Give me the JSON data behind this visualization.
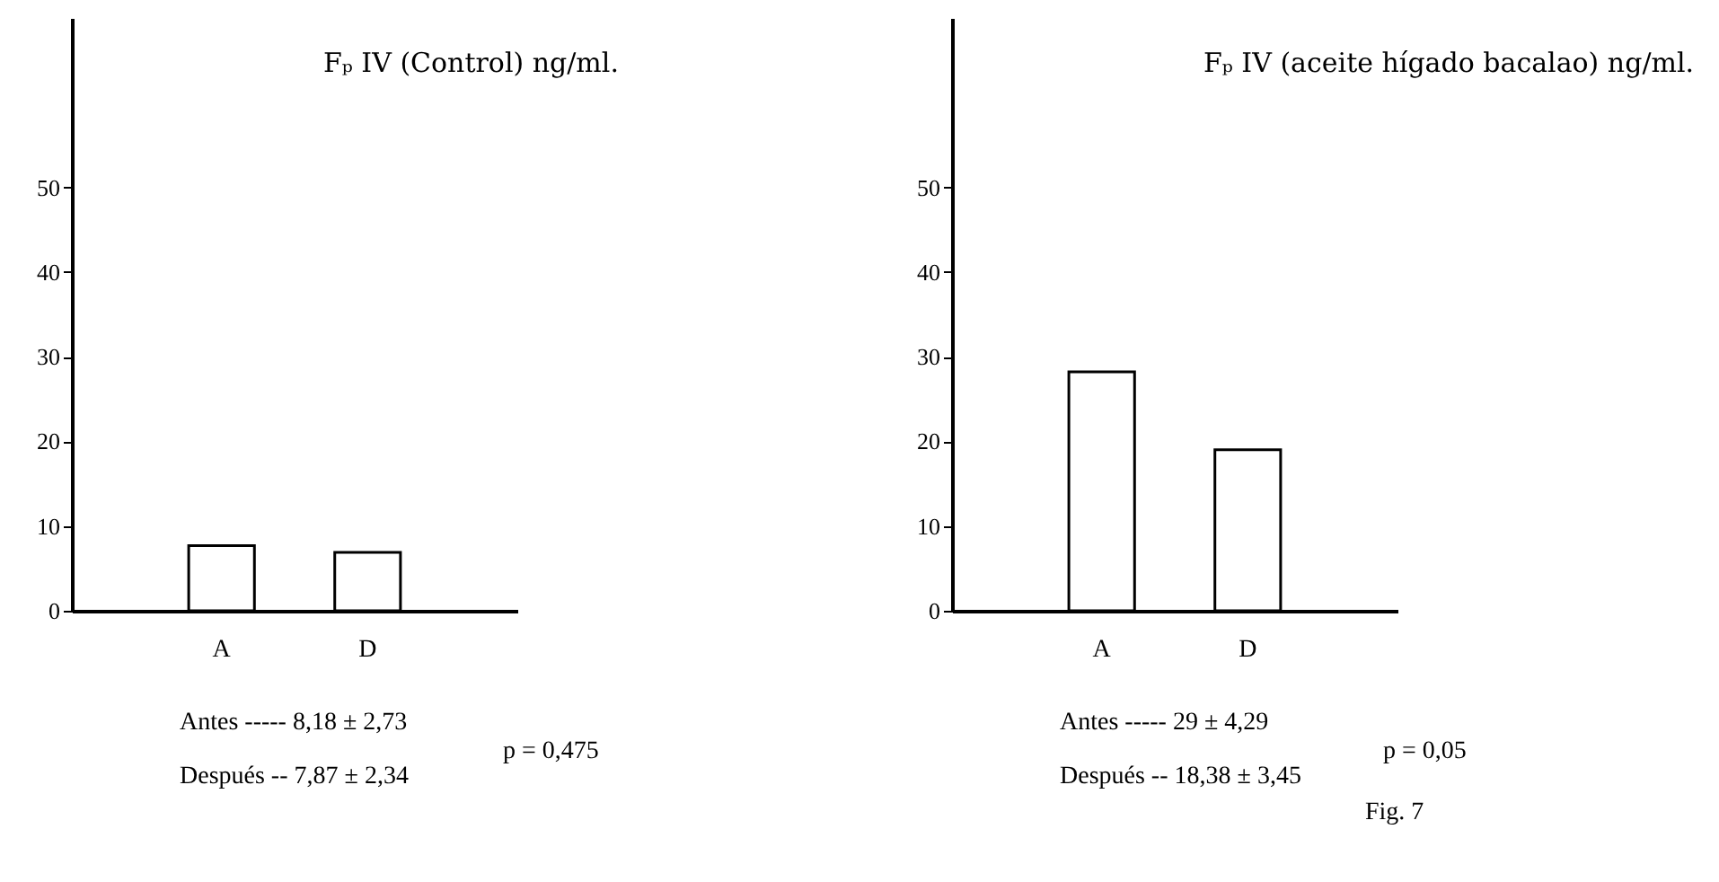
{
  "chart_data": [
    {
      "type": "bar",
      "title": "Fₚ IV (Control) ng/ml.",
      "categories": [
        "A",
        "D"
      ],
      "values": [
        7.7,
        6.9
      ],
      "colors": [
        "#ffffff",
        "#ffffff"
      ],
      "ylim": [
        0,
        70
      ],
      "yticks": [
        0,
        10,
        20,
        30,
        40,
        50
      ],
      "grid": false,
      "annotations": [
        "Antes -----   8,18 ± 2,73",
        "Después --   7,87 ± 2,34",
        "p = 0,475"
      ]
    },
    {
      "type": "bar",
      "title": "Fₚ IV (aceite hígado bacalao) ng/ml.",
      "categories": [
        "A",
        "D"
      ],
      "values": [
        28.2,
        19
      ],
      "colors": [
        "#ffffff",
        "#ffffff"
      ],
      "ylim": [
        0,
        70
      ],
      "yticks": [
        0,
        10,
        20,
        30,
        40,
        50
      ],
      "grid": false,
      "annotations": [
        "Antes ----- 29 ± 4,29",
        "Después -- 18,38 ± 3,45",
        "p = 0,05",
        "Fig. 7"
      ]
    }
  ]
}
